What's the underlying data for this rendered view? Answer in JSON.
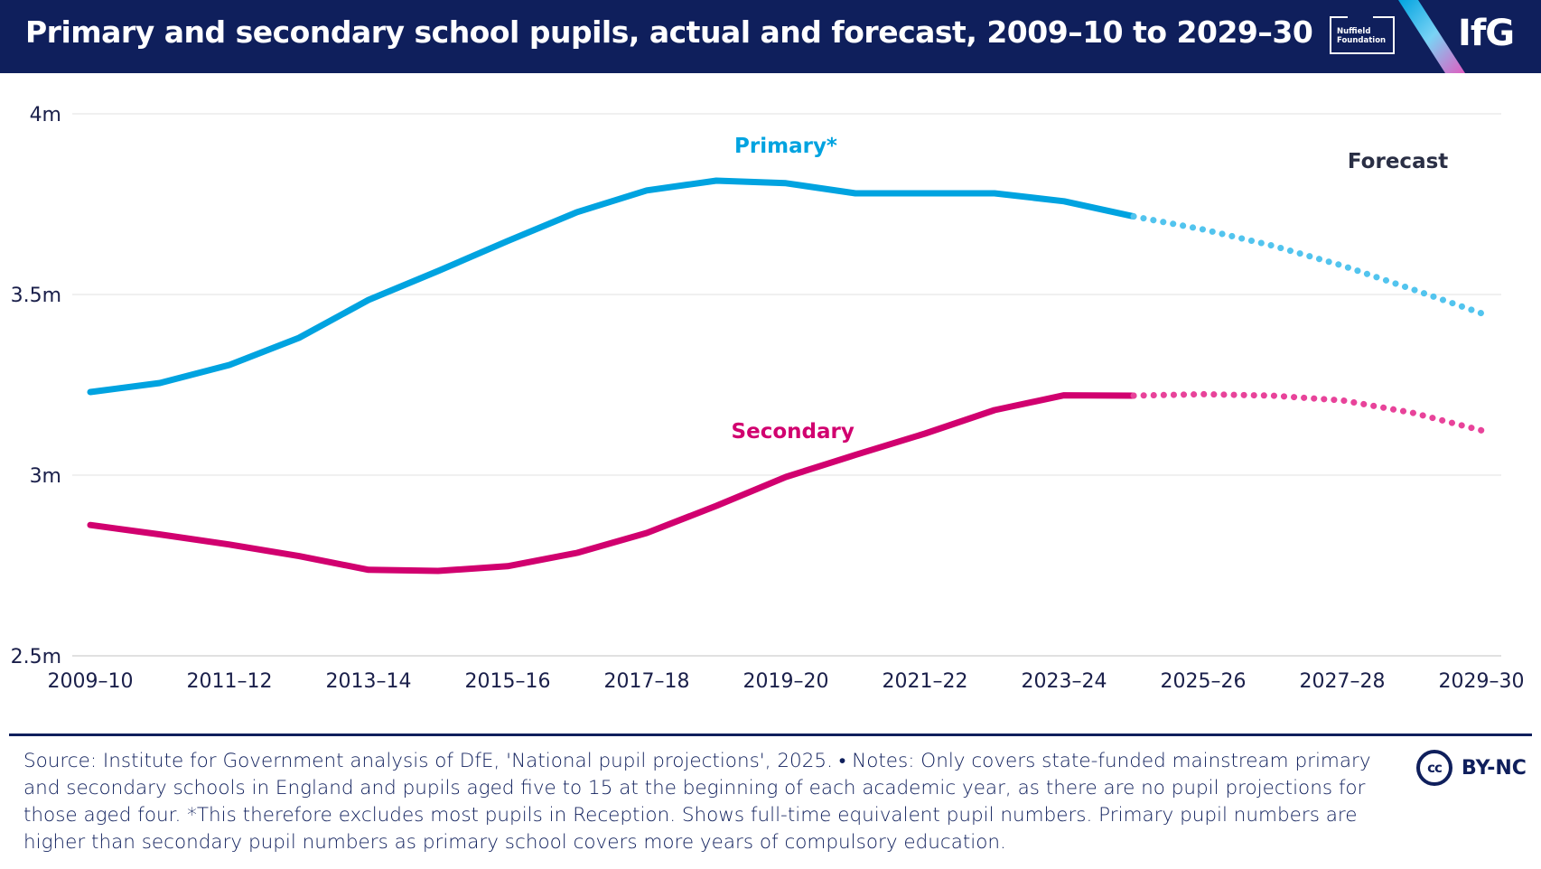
{
  "header": {
    "title": "Primary and secondary school pupils, actual and forecast, 2009–10 to 2029–30",
    "nuffield_logo": "Nuffield Foundation",
    "ifg_logo": "IfG"
  },
  "colors": {
    "header_bg": "#0f1f5c",
    "primary": "#00a3e0",
    "primary_forecast": "#52c4ee",
    "secondary": "#d1006f",
    "secondary_forecast": "#e8439a",
    "grid": "#e6e6e6",
    "text": "#1a1f4a"
  },
  "chart_data": {
    "type": "line",
    "categories": [
      "2009–10",
      "2010–11",
      "2011–12",
      "2012–13",
      "2013–14",
      "2014–15",
      "2015–16",
      "2016–17",
      "2017–18",
      "2018–19",
      "2019–20",
      "2020–21",
      "2021–22",
      "2022–23",
      "2023–24",
      "2024–25",
      "2025–26",
      "2026–27",
      "2027–28",
      "2028–29",
      "2029–30"
    ],
    "x_tick_labels": [
      "2009–10",
      "2011–12",
      "2013–14",
      "2015–16",
      "2017–18",
      "2019–20",
      "2021–22",
      "2023–24",
      "2025–26",
      "2027–28",
      "2029–30"
    ],
    "y_tick_labels": [
      "4m",
      "3.5m",
      "3m",
      "2.5m"
    ],
    "y_tick_values": [
      4.0,
      3.5,
      3.0,
      2.5
    ],
    "ylim": [
      2.5,
      4.0
    ],
    "forecast_start_index": 15,
    "forecast_label": "Forecast",
    "series": [
      {
        "name": "Primary*",
        "key": "primary",
        "values": [
          3.23,
          3.255,
          3.305,
          3.38,
          3.485,
          3.565,
          3.648,
          3.728,
          3.788,
          3.815,
          3.808,
          3.78,
          3.78,
          3.78,
          3.758,
          3.716,
          3.68,
          3.635,
          3.58,
          3.515,
          3.448
        ]
      },
      {
        "name": "Secondary",
        "key": "secondary",
        "values": [
          2.862,
          2.836,
          2.808,
          2.776,
          2.738,
          2.735,
          2.748,
          2.785,
          2.84,
          2.915,
          2.995,
          3.056,
          3.115,
          3.18,
          3.221,
          3.22,
          3.224,
          3.22,
          3.207,
          3.173,
          3.124
        ]
      }
    ]
  },
  "footer": {
    "source": "Source: Institute for Government analysis of DfE, 'National pupil projections', 2025. • Notes: Only covers state-funded mainstream primary and secondary schools in England and pupils aged five to 15 at the beginning of each academic year, as there are no pupil projections for those aged four. *This therefore excludes most pupils in Reception. Shows full-time equivalent pupil numbers. Primary pupil numbers are higher than secondary pupil numbers as primary school covers more years of compulsory education.",
    "license_icon": "cc",
    "license": "BY-NC"
  }
}
